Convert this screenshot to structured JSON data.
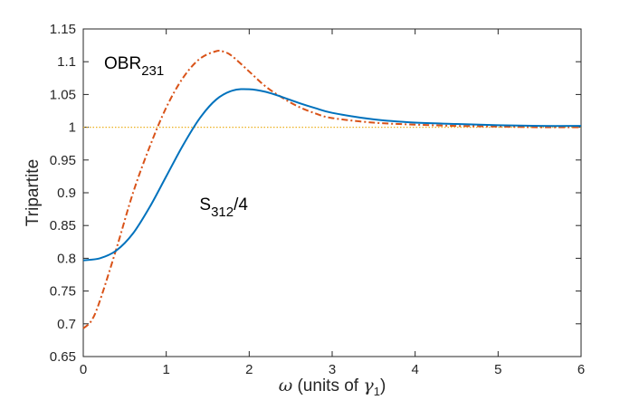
{
  "chart_data": {
    "type": "line",
    "title": "",
    "xlabel": {
      "symbol": "ω",
      "text": " (units of ",
      "greek": "γ",
      "sub": "1",
      "close": ")"
    },
    "ylabel": "Tripartite",
    "xlim": [
      0,
      6
    ],
    "ylim": [
      0.65,
      1.15
    ],
    "xticks": [
      0,
      1,
      2,
      3,
      4,
      5,
      6
    ],
    "xtick_labels": [
      "0",
      "1",
      "2",
      "3",
      "4",
      "5",
      "6"
    ],
    "yticks": [
      0.65,
      0.7,
      0.75,
      0.8,
      0.85,
      0.9,
      0.95,
      1,
      1.05,
      1.1,
      1.15
    ],
    "ytick_labels": [
      "0.65",
      "0.7",
      "0.75",
      "0.8",
      "0.85",
      "0.9",
      "0.95",
      "1",
      "1.05",
      "1.1",
      "1.15"
    ],
    "grid": false,
    "series": [
      {
        "label_main": "S",
        "label_sub": "312",
        "label_tail": "/4",
        "color": "#0072bd",
        "style": "solid",
        "x": [
          0,
          0.2,
          0.4,
          0.6,
          0.8,
          1.0,
          1.2,
          1.4,
          1.6,
          1.8,
          2.0,
          2.2,
          2.4,
          2.6,
          2.8,
          3.0,
          3.5,
          4.0,
          4.5,
          5.0,
          5.5,
          6.0
        ],
        "y": [
          0.797,
          0.8,
          0.812,
          0.838,
          0.878,
          0.925,
          0.972,
          1.013,
          1.042,
          1.056,
          1.058,
          1.054,
          1.046,
          1.037,
          1.029,
          1.022,
          1.012,
          1.007,
          1.005,
          1.003,
          1.002,
          1.002
        ]
      },
      {
        "label_main": "OBR",
        "label_sub": "231",
        "label_tail": "",
        "color": "#d95319",
        "style": "dashdot",
        "x": [
          0,
          0.1,
          0.2,
          0.4,
          0.6,
          0.8,
          1.0,
          1.2,
          1.4,
          1.6,
          1.7,
          1.8,
          2.0,
          2.2,
          2.4,
          2.6,
          2.8,
          3.0,
          3.5,
          4.0,
          4.5,
          5.0,
          5.5,
          6.0
        ],
        "y": [
          0.693,
          0.705,
          0.735,
          0.815,
          0.9,
          0.97,
          1.03,
          1.075,
          1.104,
          1.116,
          1.115,
          1.108,
          1.085,
          1.062,
          1.045,
          1.031,
          1.021,
          1.014,
          1.007,
          1.004,
          1.002,
          1.001,
          1.0,
          1.0
        ]
      },
      {
        "label_main": "",
        "label_sub": "",
        "label_tail": "",
        "color": "#edb120",
        "style": "dotted",
        "x": [
          0,
          6
        ],
        "y": [
          1,
          1
        ]
      }
    ],
    "annotations": [
      {
        "series": 1,
        "x": 0.0,
        "y": 1.1
      },
      {
        "series": 0,
        "x": 1.15,
        "y": 0.885
      }
    ]
  }
}
